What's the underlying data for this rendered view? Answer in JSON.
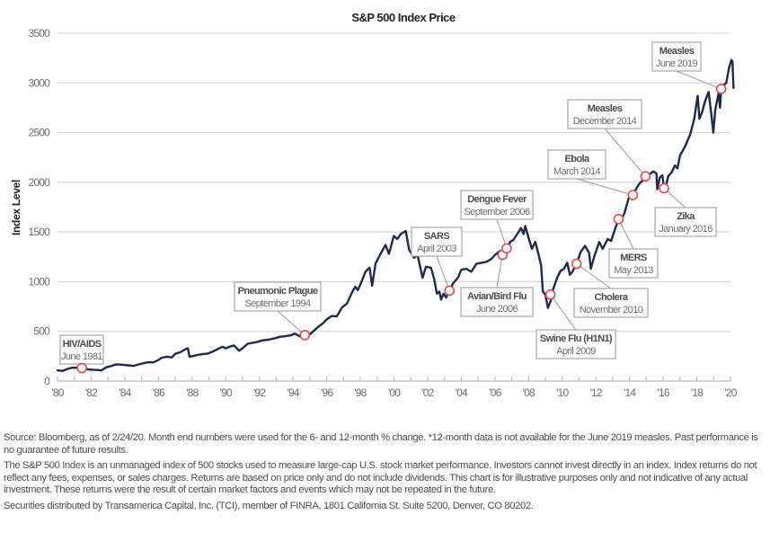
{
  "chart_data": {
    "type": "line",
    "title": "S&P 500 Index Price",
    "xlabel": "",
    "ylabel": "Index Level",
    "xlim": [
      1980,
      2020
    ],
    "ylim": [
      0,
      3500
    ],
    "grid": true,
    "y_ticks": [
      0,
      500,
      1000,
      1500,
      2000,
      2500,
      3000,
      3500
    ],
    "y_tick_labels": [
      "0",
      "500",
      "1000",
      "1500",
      "2000",
      "2500",
      "3000",
      "3500"
    ],
    "x_ticks": [
      1980,
      1982,
      1984,
      1986,
      1988,
      1990,
      1992,
      1994,
      1996,
      1998,
      2000,
      2002,
      2004,
      2006,
      2008,
      2010,
      2012,
      2014,
      2016,
      2018,
      2020
    ],
    "x_tick_labels": [
      "'80",
      "'82",
      "'84",
      "'86",
      "'88",
      "'90",
      "'92",
      "'94",
      "'96",
      "'98",
      "'00",
      "'02",
      "'04",
      "'06",
      "'08",
      "'10",
      "'12",
      "'14",
      "'16",
      "'18",
      "'20"
    ],
    "x_minor_ticks_per_year": true,
    "series": [
      {
        "name": "S&P 500 Index Price",
        "color": "#1f2a4d",
        "points": [
          [
            1980.0,
            107
          ],
          [
            1980.3,
            102
          ],
          [
            1980.6,
            122
          ],
          [
            1980.9,
            135
          ],
          [
            1981.2,
            133
          ],
          [
            1981.5,
            131
          ],
          [
            1981.8,
            118
          ],
          [
            1982.1,
            114
          ],
          [
            1982.4,
            111
          ],
          [
            1982.6,
            107
          ],
          [
            1982.9,
            138
          ],
          [
            1983.2,
            152
          ],
          [
            1983.5,
            168
          ],
          [
            1983.9,
            164
          ],
          [
            1984.2,
            158
          ],
          [
            1984.5,
            153
          ],
          [
            1984.8,
            166
          ],
          [
            1985.1,
            179
          ],
          [
            1985.4,
            189
          ],
          [
            1985.7,
            188
          ],
          [
            1985.99,
            211
          ],
          [
            1986.2,
            235
          ],
          [
            1986.5,
            245
          ],
          [
            1986.8,
            238
          ],
          [
            1987.0,
            274
          ],
          [
            1987.3,
            290
          ],
          [
            1987.6,
            320
          ],
          [
            1987.75,
            330
          ],
          [
            1987.85,
            245
          ],
          [
            1988.0,
            250
          ],
          [
            1988.3,
            262
          ],
          [
            1988.6,
            270
          ],
          [
            1988.9,
            275
          ],
          [
            1989.2,
            295
          ],
          [
            1989.5,
            320
          ],
          [
            1989.8,
            345
          ],
          [
            1990.0,
            330
          ],
          [
            1990.3,
            350
          ],
          [
            1990.5,
            358
          ],
          [
            1990.8,
            305
          ],
          [
            1991.0,
            330
          ],
          [
            1991.3,
            375
          ],
          [
            1991.6,
            385
          ],
          [
            1991.9,
            395
          ],
          [
            1992.2,
            410
          ],
          [
            1992.5,
            415
          ],
          [
            1992.9,
            430
          ],
          [
            1993.2,
            445
          ],
          [
            1993.5,
            450
          ],
          [
            1993.9,
            462
          ],
          [
            1994.1,
            478
          ],
          [
            1994.4,
            450
          ],
          [
            1994.7,
            462
          ],
          [
            1994.9,
            455
          ],
          [
            1995.2,
            500
          ],
          [
            1995.5,
            545
          ],
          [
            1995.8,
            585
          ],
          [
            1996.0,
            620
          ],
          [
            1996.3,
            655
          ],
          [
            1996.6,
            650
          ],
          [
            1996.9,
            740
          ],
          [
            1997.2,
            780
          ],
          [
            1997.5,
            890
          ],
          [
            1997.7,
            950
          ],
          [
            1997.85,
            915
          ],
          [
            1998.0,
            970
          ],
          [
            1998.3,
            1100
          ],
          [
            1998.55,
            1140
          ],
          [
            1998.7,
            960
          ],
          [
            1998.9,
            1180
          ],
          [
            1999.2,
            1280
          ],
          [
            1999.5,
            1370
          ],
          [
            1999.7,
            1280
          ],
          [
            1999.99,
            1460
          ],
          [
            2000.2,
            1430
          ],
          [
            2000.4,
            1480
          ],
          [
            2000.7,
            1510
          ],
          [
            2000.9,
            1320
          ],
          [
            2001.2,
            1240
          ],
          [
            2001.4,
            1270
          ],
          [
            2001.7,
            1040
          ],
          [
            2001.9,
            1150
          ],
          [
            2002.2,
            1140
          ],
          [
            2002.4,
            1020
          ],
          [
            2002.55,
            880
          ],
          [
            2002.7,
            900
          ],
          [
            2002.8,
            820
          ],
          [
            2002.95,
            880
          ],
          [
            2003.1,
            840
          ],
          [
            2003.3,
            910
          ],
          [
            2003.5,
            980
          ],
          [
            2003.8,
            1040
          ],
          [
            2004.0,
            1120
          ],
          [
            2004.3,
            1130
          ],
          [
            2004.6,
            1100
          ],
          [
            2004.9,
            1180
          ],
          [
            2005.2,
            1190
          ],
          [
            2005.5,
            1200
          ],
          [
            2005.8,
            1230
          ],
          [
            2006.0,
            1270
          ],
          [
            2006.3,
            1310
          ],
          [
            2006.45,
            1260
          ],
          [
            2006.7,
            1330
          ],
          [
            2006.9,
            1400
          ],
          [
            2007.1,
            1420
          ],
          [
            2007.4,
            1500
          ],
          [
            2007.55,
            1540
          ],
          [
            2007.7,
            1480
          ],
          [
            2007.8,
            1560
          ],
          [
            2007.95,
            1470
          ],
          [
            2008.2,
            1330
          ],
          [
            2008.4,
            1400
          ],
          [
            2008.6,
            1270
          ],
          [
            2008.75,
            1160
          ],
          [
            2008.85,
            900
          ],
          [
            2009.0,
            870
          ],
          [
            2009.15,
            735
          ],
          [
            2009.3,
            800
          ],
          [
            2009.45,
            920
          ],
          [
            2009.7,
            1040
          ],
          [
            2009.9,
            1110
          ],
          [
            2010.1,
            1130
          ],
          [
            2010.3,
            1190
          ],
          [
            2010.45,
            1070
          ],
          [
            2010.6,
            1100
          ],
          [
            2010.85,
            1180
          ],
          [
            2011.1,
            1300
          ],
          [
            2011.35,
            1360
          ],
          [
            2011.6,
            1290
          ],
          [
            2011.7,
            1130
          ],
          [
            2011.9,
            1250
          ],
          [
            2012.2,
            1400
          ],
          [
            2012.4,
            1330
          ],
          [
            2012.7,
            1430
          ],
          [
            2012.9,
            1410
          ],
          [
            2013.1,
            1510
          ],
          [
            2013.35,
            1630
          ],
          [
            2013.5,
            1620
          ],
          [
            2013.7,
            1690
          ],
          [
            2013.95,
            1840
          ],
          [
            2014.1,
            1850
          ],
          [
            2014.2,
            1880
          ],
          [
            2014.45,
            1950
          ],
          [
            2014.6,
            1990
          ],
          [
            2014.8,
            2020
          ],
          [
            2014.95,
            2060
          ],
          [
            2015.2,
            2080
          ],
          [
            2015.4,
            2110
          ],
          [
            2015.6,
            2090
          ],
          [
            2015.65,
            1930
          ],
          [
            2015.8,
            2050
          ],
          [
            2015.95,
            2070
          ],
          [
            2016.05,
            1940
          ],
          [
            2016.15,
            1950
          ],
          [
            2016.3,
            2060
          ],
          [
            2016.5,
            2100
          ],
          [
            2016.7,
            2170
          ],
          [
            2016.85,
            2140
          ],
          [
            2017.0,
            2270
          ],
          [
            2017.3,
            2360
          ],
          [
            2017.6,
            2480
          ],
          [
            2017.85,
            2640
          ],
          [
            2018.05,
            2870
          ],
          [
            2018.15,
            2640
          ],
          [
            2018.3,
            2700
          ],
          [
            2018.5,
            2820
          ],
          [
            2018.7,
            2910
          ],
          [
            2018.85,
            2700
          ],
          [
            2018.98,
            2500
          ],
          [
            2019.1,
            2730
          ],
          [
            2019.3,
            2900
          ],
          [
            2019.38,
            2750
          ],
          [
            2019.45,
            2940
          ],
          [
            2019.6,
            2980
          ],
          [
            2019.75,
            3000
          ],
          [
            2019.9,
            3140
          ],
          [
            2020.05,
            3230
          ],
          [
            2020.12,
            3220
          ],
          [
            2020.18,
            2950
          ]
        ]
      }
    ],
    "annotations": [
      {
        "event": "HIV/AIDS",
        "date": "June 1981",
        "x": 1981.45,
        "y": 131
      },
      {
        "event": "Pneumonic Plague",
        "date": "September 1994",
        "x": 1994.7,
        "y": 462
      },
      {
        "event": "SARS",
        "date": "April 2003",
        "x": 2003.3,
        "y": 910
      },
      {
        "event": "Avian/Bird Flu",
        "date": "June 2006",
        "x": 2006.45,
        "y": 1270
      },
      {
        "event": "Dengue Fever",
        "date": "September 2006",
        "x": 2006.7,
        "y": 1335
      },
      {
        "event": "Swine Flu (H1N1)",
        "date": "April 2009",
        "x": 2009.3,
        "y": 870
      },
      {
        "event": "Cholera",
        "date": "November 2010",
        "x": 2010.85,
        "y": 1180
      },
      {
        "event": "MERS",
        "date": "May 2013",
        "x": 2013.35,
        "y": 1630
      },
      {
        "event": "Ebola",
        "date": "March 2014",
        "x": 2014.2,
        "y": 1872
      },
      {
        "event": "Measles",
        "date": "December 2014",
        "x": 2014.95,
        "y": 2060
      },
      {
        "event": "Zika",
        "date": "January 2016",
        "x": 2016.05,
        "y": 1940
      },
      {
        "event": "Measles",
        "date": "June 2019",
        "x": 2019.45,
        "y": 2940
      }
    ],
    "marker_color": "#e8484d"
  },
  "footnotes": {
    "source": "Source: Bloomberg, as of 2/24/20. Month end numbers were used for the 6- and 12-month % change. *12-month data is not available for the June 2019 measles. Past performance is no guarantee of future results.",
    "disclaimer": "The S&P 500 Index is an unmanaged index of 500 stocks used to measure large-cap U.S. stock market performance. Investors cannot invest directly in an index. Index returns do not reflect any fees, expenses, or sales charges. Returns are based on price only and do not include dividends. This chart is for illustrative purposes only and not indicative of any actual investment. These returns were the result of certain market factors and events which may not be repeated in the future.",
    "distributor": "Securities distributed by Transamerica Capital, Inc. (TCI), member of FINRA. 1801 California St. Suite 5200, Denver, CO 80202."
  }
}
